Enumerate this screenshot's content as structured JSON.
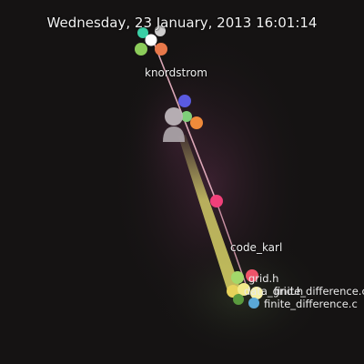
{
  "timestamp": "Wednesday, 23 January, 2013 16:01:14",
  "users": [
    {
      "name": "knordstrom"
    },
    {
      "name": "code_karl"
    }
  ],
  "file_labels": [
    "grid.h",
    "data_grid.h",
    "finite_difference.c",
    "finite_difference.c"
  ],
  "colors": {
    "background": "#151313",
    "beam": "#d4cf6a",
    "link": "#f2b6c6",
    "label": "#f2f2f2",
    "avatar": "#b9b1b6"
  },
  "icons": {
    "avatar": "person-icon"
  }
}
